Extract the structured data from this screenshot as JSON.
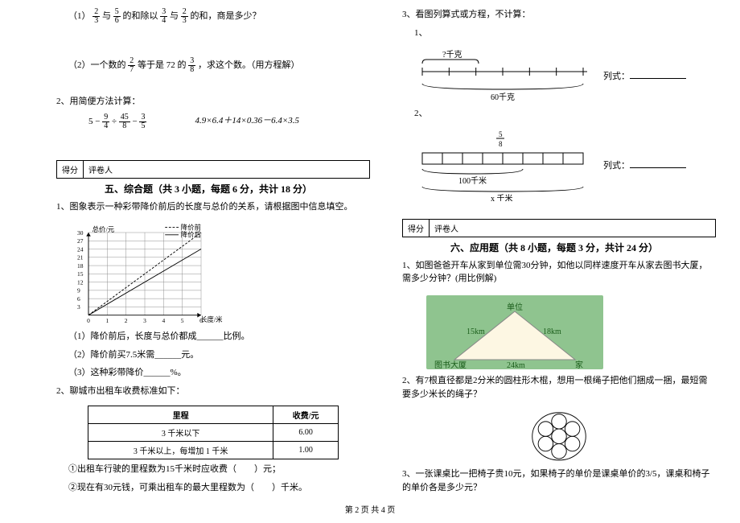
{
  "footer": "第 2 页 共 4 页",
  "left": {
    "q1_1": {
      "pre": "（1）",
      "a": "2",
      "b": "3",
      "mid1": "与",
      "c": "5",
      "d": "6",
      "mid2": "的和除以",
      "e": "3",
      "f": "4",
      "mid3": "与",
      "g": "2",
      "h": "3",
      "post": "的和，商是多少？"
    },
    "q1_2": {
      "pre": "（2）一个数的",
      "a": "2",
      "b": "7",
      "mid1": "等于是 72 的",
      "c": "3",
      "d": "8",
      "post": "，求这个数。（用方程解）"
    },
    "q2_label": "2、用简便方法计算：",
    "q2_expr1": {
      "a": "5 − ",
      "b": "9",
      "c": "4",
      "d": " ÷ ",
      "e": "45",
      "f": "8",
      "g": " − ",
      "h": "3",
      "i": "5"
    },
    "q2_expr2": "4.9×6.4＋14×0.36－6.4×3.5",
    "score_a": "得分",
    "score_b": "评卷人",
    "sec5_title": "五、综合题（共 3 小题，每题 6 分，共计 18 分）",
    "q5_1": "1、图象表示一种彩带降价前后的长度与总价的关系，请根据图中信息填空。",
    "chart": {
      "ylabel": "总价/元",
      "xlabel": "长度/米",
      "legend_a": "降价前",
      "legend_b": "降价后",
      "xticks": [
        "0",
        "1",
        "2",
        "3",
        "4",
        "5",
        "6"
      ],
      "yticks": [
        "3",
        "6",
        "9",
        "12",
        "15",
        "18",
        "21",
        "24",
        "27",
        "30"
      ],
      "line_a": [
        [
          0,
          0
        ],
        [
          6,
          30
        ]
      ],
      "line_b": [
        [
          0,
          0
        ],
        [
          6,
          24
        ]
      ]
    },
    "q5_1_sub1": "（1）降价前后，长度与总价都成______比例。",
    "q5_1_sub2": "（2）降价前买7.5米需______元。",
    "q5_1_sub3": "（3）这种彩带降价______%。",
    "q5_2": "2、聊城市出租车收费标准如下：",
    "table": {
      "h1": "里程",
      "h2": "收费/元",
      "r1a": "3 千米以下",
      "r1b": "6.00",
      "r2a": "3 千米以上，每增加 1 千米",
      "r2b": "1.00"
    },
    "q5_2_sub1": "①出租车行驶的里程数为15千米时应收费（　　）元；",
    "q5_2_sub2": "②现在有30元钱，可乘出租车的最大里程数为（　　）千米。"
  },
  "right": {
    "q3_label": "3、看图列算式或方程，不计算：",
    "q3_1": "1、",
    "ruler1": {
      "top": "?千克",
      "bottom": "60千克",
      "expr": "列式："
    },
    "q3_2": "2、",
    "ruler2": {
      "frac_n": "5",
      "frac_d": "8",
      "mid": "100千米",
      "bottom": "x 千米",
      "expr": "列式："
    },
    "score_a": "得分",
    "score_b": "评卷人",
    "sec6_title": "六、应用题（共 8 小题，每题 3 分，共计 24 分）",
    "q6_1": "1、如图爸爸开车从家到单位需30分钟，如他以同样速度开车从家去图书大厦，需多少分钟？(用比例解)",
    "tri": {
      "a": "单位",
      "b": "15km",
      "c": "18km",
      "d": "图书大厦",
      "e": "24km",
      "f": "家"
    },
    "q6_2": "2、有7根直径都是2分米的圆柱形木棍，想用一根绳子把他们捆成一捆，最短需要多少米长的绳子？",
    "q6_3": "3、一张课桌比一把椅子贵10元，如果椅子的单价是课桌单价的3/5，课桌和椅子的单价各是多少元？"
  }
}
